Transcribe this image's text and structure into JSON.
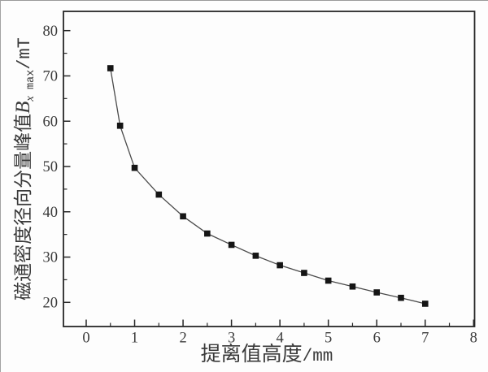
{
  "figure": {
    "background": "#fdfdfd",
    "frame_color": "#272727",
    "text_color": "#3a3a3a"
  },
  "chart_data": {
    "type": "line",
    "title": "",
    "x": [
      0.5,
      0.7,
      1.0,
      1.5,
      2.0,
      2.5,
      3.0,
      3.5,
      4.0,
      4.5,
      5.0,
      5.5,
      6.0,
      6.5,
      7.0
    ],
    "y": [
      71.7,
      59.0,
      49.7,
      43.8,
      39.0,
      35.2,
      32.7,
      30.3,
      28.2,
      26.5,
      24.8,
      23.5,
      22.2,
      21.0,
      19.7
    ],
    "xlabel": "提离值高度/mm",
    "ylabel": "磁通密度径向分量峰值Bx max/mT",
    "xlabel_parts": {
      "text": "提离值高度",
      "unit": "/mm"
    },
    "ylabel_parts": {
      "prefix": "磁通密度径向分量峰值",
      "symbol": "B",
      "sub_italic": "x",
      "sub_text": "max",
      "unit": "/mT"
    },
    "xlim": [
      -0.47,
      8.02
    ],
    "ylim": [
      14.67,
      84.25
    ],
    "xticks": [
      0,
      1,
      2,
      3,
      4,
      5,
      6,
      7,
      8
    ],
    "yticks": [
      20,
      30,
      40,
      50,
      60,
      70,
      80
    ],
    "x_minor_ticks": [
      0.5,
      1.5,
      2.5,
      3.5,
      4.5,
      5.5,
      6.5,
      7.5
    ],
    "y_minor_ticks": [
      25,
      35,
      45,
      55,
      65,
      75
    ],
    "grid": false,
    "legend": null,
    "marker": "square",
    "marker_size": 7.6,
    "marker_color": "#151515",
    "line_color": "#4a4a4a",
    "axis_color": "#272727",
    "text_color": "#3a3a3a"
  }
}
